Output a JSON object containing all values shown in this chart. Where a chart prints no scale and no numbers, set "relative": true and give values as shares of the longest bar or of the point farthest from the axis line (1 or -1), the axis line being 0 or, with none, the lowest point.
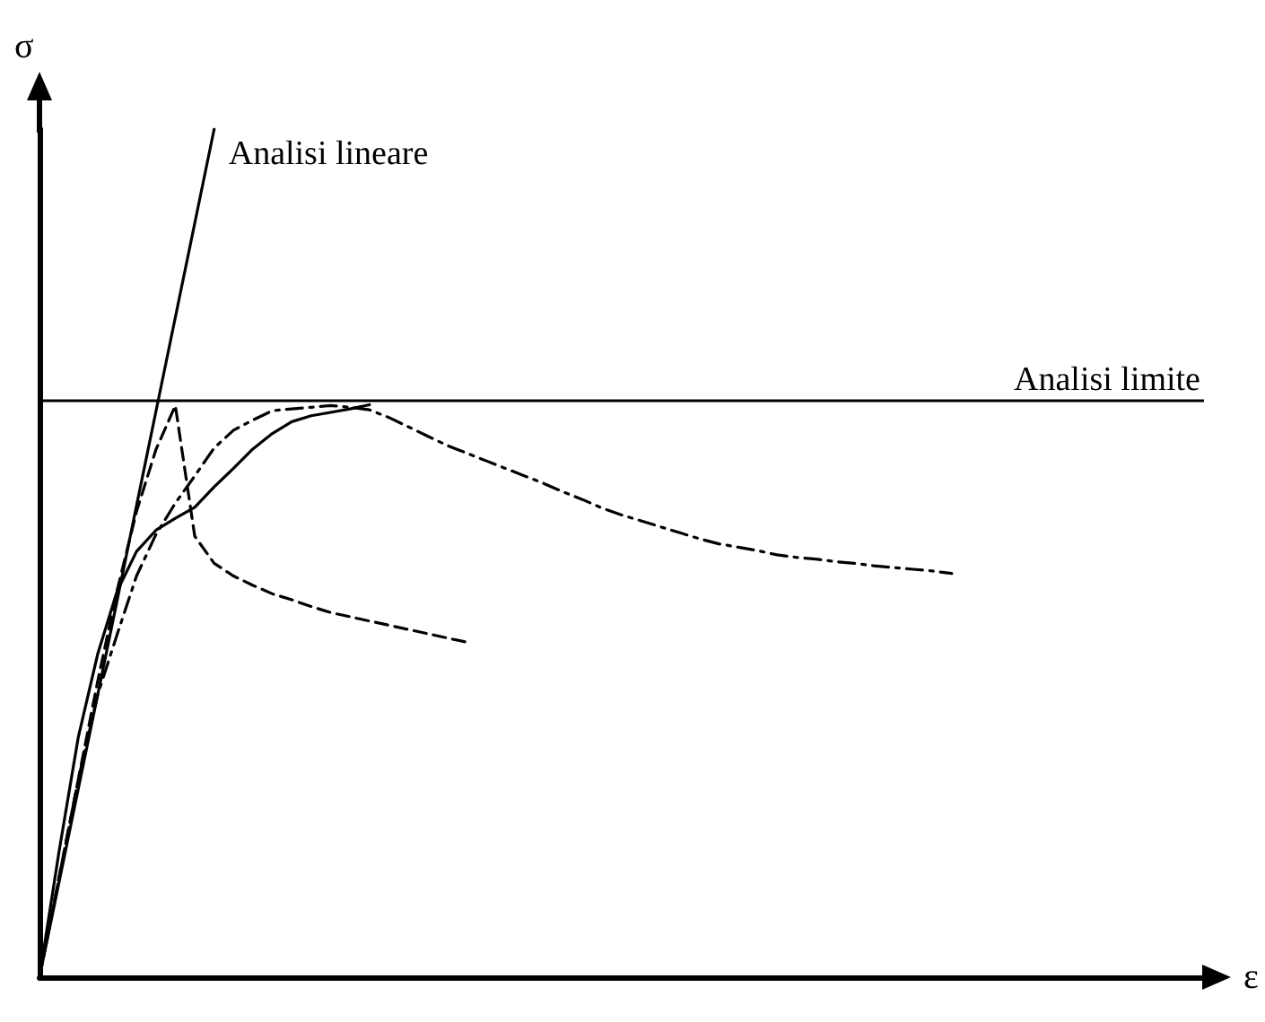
{
  "chart_data": {
    "type": "line",
    "xlabel": "ε",
    "ylabel": "σ",
    "relative": true,
    "grid": false,
    "legend": false,
    "marker": "none",
    "categories": [
      null,
      null,
      null,
      null,
      null,
      null,
      null,
      null,
      null,
      null,
      null,
      null,
      null,
      null,
      null,
      null,
      null,
      null,
      null,
      null,
      null,
      null,
      null,
      null,
      null,
      null,
      null,
      null,
      null,
      null,
      null,
      null,
      null,
      null,
      null,
      null,
      null,
      null,
      null,
      null,
      null,
      null,
      null,
      null,
      null,
      null,
      null,
      null,
      null,
      null,
      null,
      null,
      null,
      null,
      null,
      null,
      null,
      null,
      null,
      null,
      null
    ],
    "series": [
      {
        "name": "Analisi lineare",
        "color": "#000000",
        "line_style": "solid",
        "values": [
          0,
          0.111,
          0.222,
          0.333,
          0.444,
          0.556,
          0.667,
          0.778,
          0.889,
          1,
          null,
          null,
          null,
          null,
          null,
          null,
          null,
          null,
          null,
          null,
          null,
          null,
          null,
          null,
          null,
          null,
          null,
          null,
          null,
          null,
          null,
          null,
          null,
          null,
          null,
          null,
          null,
          null,
          null,
          null,
          null,
          null,
          null,
          null,
          null,
          null,
          null,
          null,
          null,
          null,
          null,
          null,
          null,
          null,
          null,
          null,
          null,
          null,
          null,
          null,
          null
        ]
      },
      {
        "color": "#000000",
        "line_style": "dashed",
        "values": [
          0,
          0.117,
          0.233,
          0.349,
          0.456,
          0.549,
          0.622,
          0.674,
          0.52,
          0.488,
          0.473,
          0.462,
          0.452,
          0.445,
          0.437,
          0.43,
          0.425,
          0.42,
          0.415,
          0.41,
          0.405,
          0.4,
          0.395,
          null,
          null,
          null,
          null,
          null,
          null,
          null,
          null,
          null,
          null,
          null,
          null,
          null,
          null,
          null,
          null,
          null,
          null,
          null,
          null,
          null,
          null,
          null,
          null,
          null,
          null,
          null,
          null,
          null,
          null,
          null,
          null,
          null,
          null,
          null,
          null,
          null,
          null
        ]
      },
      {
        "color": "#000000",
        "line_style": "dashdot",
        "values": [
          0,
          0.116,
          0.233,
          0.333,
          0.404,
          0.473,
          0.522,
          0.559,
          0.591,
          0.624,
          0.645,
          0.657,
          0.668,
          0.67,
          0.672,
          0.674,
          0.672,
          0.669,
          0.66,
          0.649,
          0.638,
          0.627,
          0.618,
          0.609,
          0.6,
          0.591,
          0.582,
          0.572,
          0.563,
          0.553,
          0.545,
          0.538,
          0.531,
          0.524,
          0.517,
          0.511,
          0.507,
          0.503,
          0.498,
          0.495,
          0.493,
          0.49,
          0.488,
          0.485,
          0.483,
          0.481,
          0.479,
          0.476,
          null,
          null,
          null,
          null,
          null,
          null,
          null,
          null,
          null,
          null,
          null,
          null,
          null
        ]
      },
      {
        "color": "#000000",
        "line_style": "solid",
        "values": [
          0,
          0.147,
          0.283,
          0.381,
          0.455,
          0.502,
          0.527,
          0.541,
          0.554,
          0.578,
          0.6,
          0.623,
          0.641,
          0.655,
          0.662,
          0.666,
          0.67,
          0.675,
          null,
          null,
          null,
          null,
          null,
          null,
          null,
          null,
          null,
          null,
          null,
          null,
          null,
          null,
          null,
          null,
          null,
          null,
          null,
          null,
          null,
          null,
          null,
          null,
          null,
          null,
          null,
          null,
          null,
          null,
          null,
          null,
          null,
          null,
          null,
          null,
          null,
          null,
          null,
          null,
          null,
          null,
          null
        ]
      }
    ],
    "ref_lines": [
      {
        "axis": "y",
        "value": 0.679,
        "label": "Analisi limite",
        "color": "#000000",
        "line_style": "solid"
      }
    ]
  }
}
